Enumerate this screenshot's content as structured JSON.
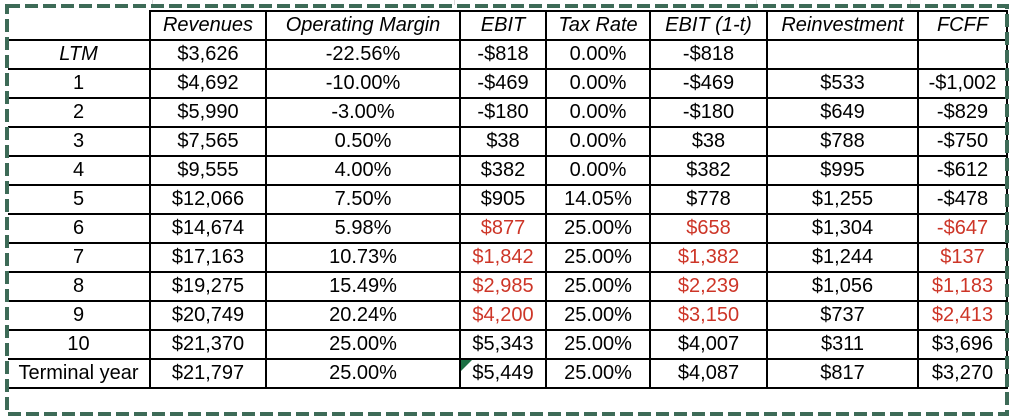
{
  "colors": {
    "selection_border_green": "#3d6b57",
    "negative_red": "#cd3527",
    "error_indicator_green": "#1d7044",
    "table_border_black": "#000000"
  },
  "table": {
    "columns": [
      "",
      "Revenues",
      "Operating Margin",
      "EBIT",
      "Tax Rate",
      "EBIT (1-t)",
      "Reinvestment",
      "FCFF"
    ],
    "column_keys": [
      "revenues",
      "operating-margin",
      "ebit",
      "tax-rate",
      "ebit-1t",
      "reinvestment",
      "fcff"
    ],
    "rows": [
      {
        "label": "LTM",
        "italic": true,
        "cells": [
          {
            "v": "$3,626"
          },
          {
            "v": "-22.56%"
          },
          {
            "v": "-$818"
          },
          {
            "v": "0.00%"
          },
          {
            "v": "-$818"
          },
          {
            "v": ""
          },
          {
            "v": ""
          }
        ]
      },
      {
        "label": "1",
        "cells": [
          {
            "v": "$4,692"
          },
          {
            "v": "-10.00%"
          },
          {
            "v": "-$469"
          },
          {
            "v": "0.00%"
          },
          {
            "v": "-$469"
          },
          {
            "v": "$533"
          },
          {
            "v": "-$1,002"
          }
        ]
      },
      {
        "label": "2",
        "cells": [
          {
            "v": "$5,990"
          },
          {
            "v": "-3.00%"
          },
          {
            "v": "-$180"
          },
          {
            "v": "0.00%"
          },
          {
            "v": "-$180"
          },
          {
            "v": "$649"
          },
          {
            "v": "-$829"
          }
        ]
      },
      {
        "label": "3",
        "cells": [
          {
            "v": "$7,565"
          },
          {
            "v": "0.50%"
          },
          {
            "v": "$38"
          },
          {
            "v": "0.00%"
          },
          {
            "v": "$38"
          },
          {
            "v": "$788"
          },
          {
            "v": "-$750"
          }
        ]
      },
      {
        "label": "4",
        "cells": [
          {
            "v": "$9,555"
          },
          {
            "v": "4.00%"
          },
          {
            "v": "$382"
          },
          {
            "v": "0.00%"
          },
          {
            "v": "$382"
          },
          {
            "v": "$995"
          },
          {
            "v": "-$612"
          }
        ]
      },
      {
        "label": "5",
        "cells": [
          {
            "v": "$12,066"
          },
          {
            "v": "7.50%"
          },
          {
            "v": "$905"
          },
          {
            "v": "14.05%"
          },
          {
            "v": "$778"
          },
          {
            "v": "$1,255"
          },
          {
            "v": "-$478"
          }
        ]
      },
      {
        "label": "6",
        "cells": [
          {
            "v": "$14,674"
          },
          {
            "v": "5.98%"
          },
          {
            "v": "$877",
            "red": true
          },
          {
            "v": "25.00%"
          },
          {
            "v": "$658",
            "red": true
          },
          {
            "v": "$1,304"
          },
          {
            "v": "-$647",
            "red": true
          }
        ]
      },
      {
        "label": "7",
        "cells": [
          {
            "v": "$17,163"
          },
          {
            "v": "10.73%"
          },
          {
            "v": "$1,842",
            "red": true
          },
          {
            "v": "25.00%"
          },
          {
            "v": "$1,382",
            "red": true
          },
          {
            "v": "$1,244"
          },
          {
            "v": "$137",
            "red": true
          }
        ]
      },
      {
        "label": "8",
        "cells": [
          {
            "v": "$19,275"
          },
          {
            "v": "15.49%"
          },
          {
            "v": "$2,985",
            "red": true
          },
          {
            "v": "25.00%"
          },
          {
            "v": "$2,239",
            "red": true
          },
          {
            "v": "$1,056"
          },
          {
            "v": "$1,183",
            "red": true
          }
        ]
      },
      {
        "label": "9",
        "cells": [
          {
            "v": "$20,749"
          },
          {
            "v": "20.24%"
          },
          {
            "v": "$4,200",
            "red": true
          },
          {
            "v": "25.00%"
          },
          {
            "v": "$3,150",
            "red": true
          },
          {
            "v": "$737"
          },
          {
            "v": "$2,413",
            "red": true
          }
        ]
      },
      {
        "label": "10",
        "cells": [
          {
            "v": "$21,370"
          },
          {
            "v": "25.00%"
          },
          {
            "v": "$5,343"
          },
          {
            "v": "25.00%"
          },
          {
            "v": "$4,007"
          },
          {
            "v": "$311"
          },
          {
            "v": "$3,696"
          }
        ]
      },
      {
        "label": "Terminal year",
        "cells": [
          {
            "v": "$21,797"
          },
          {
            "v": "25.00%"
          },
          {
            "v": "$5,449",
            "tri": true
          },
          {
            "v": "25.00%"
          },
          {
            "v": "$4,087"
          },
          {
            "v": "$817"
          },
          {
            "v": "$3,270"
          }
        ]
      }
    ]
  }
}
